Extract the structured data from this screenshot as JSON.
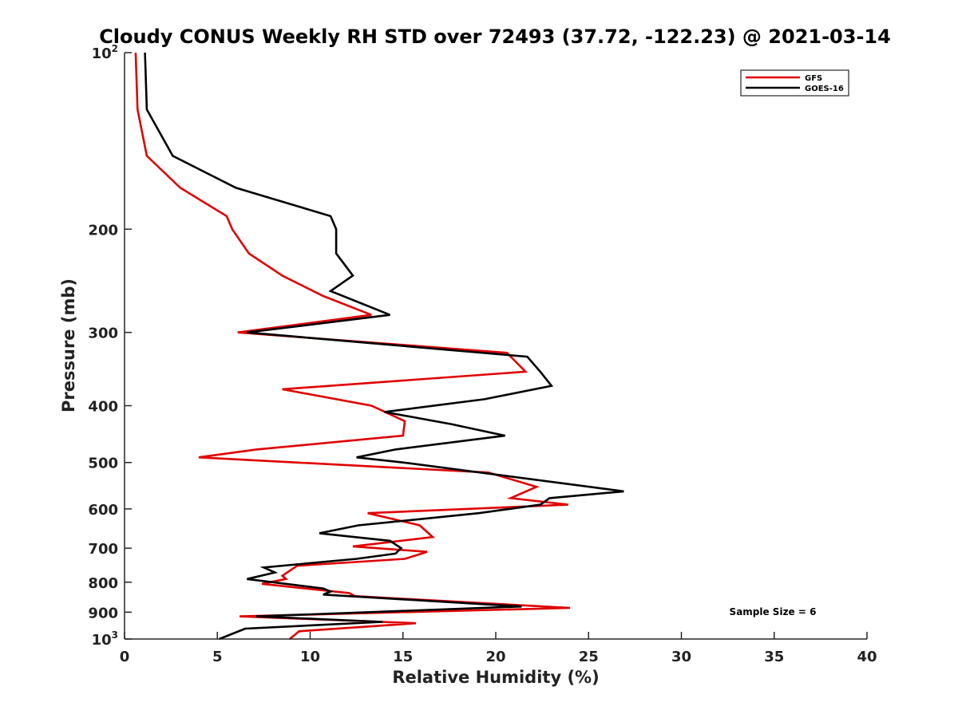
{
  "chart_data": {
    "type": "line",
    "title": "Cloudy CONUS Weekly RH STD over 72493 (37.72, -122.23) @ 2021-03-14",
    "xlabel": "Relative Humidity (%)",
    "ylabel": "Pressure (mb)",
    "xlim": [
      0,
      40
    ],
    "ylim": [
      100,
      1000
    ],
    "y_scale": "log",
    "y_reversed": true,
    "grid": false,
    "legend_position": "top-right",
    "x_ticks": [
      0,
      5,
      10,
      15,
      20,
      25,
      30,
      35,
      40
    ],
    "y_ticks": [
      {
        "value": 100,
        "base": "10",
        "exp": "2"
      },
      {
        "value": 200,
        "label": "200"
      },
      {
        "value": 300,
        "label": "300"
      },
      {
        "value": 400,
        "label": "400"
      },
      {
        "value": 500,
        "label": "500"
      },
      {
        "value": 600,
        "label": "600"
      },
      {
        "value": 700,
        "label": "700"
      },
      {
        "value": 800,
        "label": "800"
      },
      {
        "value": 900,
        "label": "900"
      },
      {
        "value": 1000,
        "base": "10",
        "exp": "3"
      }
    ],
    "annotation": "Sample Size = 6",
    "series": [
      {
        "name": "GFS",
        "color": "#e00000",
        "points": [
          [
            0.6,
            100
          ],
          [
            0.7,
            125
          ],
          [
            1.2,
            150
          ],
          [
            3.0,
            170
          ],
          [
            5.5,
            190
          ],
          [
            5.8,
            200
          ],
          [
            6.7,
            220
          ],
          [
            8.5,
            240
          ],
          [
            10.7,
            260
          ],
          [
            13.3,
            280
          ],
          [
            6.1,
            300
          ],
          [
            20.6,
            325
          ],
          [
            21.6,
            350
          ],
          [
            8.5,
            375
          ],
          [
            13.3,
            400
          ],
          [
            15.1,
            425
          ],
          [
            15.0,
            450
          ],
          [
            7.1,
            475
          ],
          [
            4.0,
            490
          ],
          [
            19.6,
            520
          ],
          [
            22.2,
            550
          ],
          [
            20.8,
            575
          ],
          [
            23.9,
            590
          ],
          [
            13.1,
            610
          ],
          [
            15.9,
            640
          ],
          [
            16.6,
            670
          ],
          [
            12.3,
            695
          ],
          [
            16.3,
            710
          ],
          [
            15.1,
            730
          ],
          [
            9.3,
            750
          ],
          [
            8.5,
            780
          ],
          [
            8.7,
            790
          ],
          [
            7.4,
            805
          ],
          [
            12.1,
            835
          ],
          [
            12.4,
            845
          ],
          [
            24.0,
            885
          ],
          [
            6.2,
            915
          ],
          [
            15.7,
            940
          ],
          [
            9.4,
            970
          ],
          [
            8.9,
            1000
          ]
        ]
      },
      {
        "name": "GOES-16",
        "color": "#000000",
        "points": [
          [
            1.1,
            100
          ],
          [
            1.2,
            125
          ],
          [
            2.6,
            150
          ],
          [
            6.0,
            170
          ],
          [
            11.1,
            190
          ],
          [
            11.4,
            200
          ],
          [
            11.4,
            220
          ],
          [
            12.3,
            240
          ],
          [
            11.1,
            255
          ],
          [
            14.3,
            280
          ],
          [
            6.6,
            300
          ],
          [
            21.7,
            330
          ],
          [
            22.4,
            350
          ],
          [
            23.0,
            370
          ],
          [
            19.4,
            390
          ],
          [
            14.0,
            410
          ],
          [
            17.6,
            430
          ],
          [
            20.5,
            450
          ],
          [
            14.6,
            475
          ],
          [
            12.5,
            490
          ],
          [
            15.0,
            500
          ],
          [
            26.9,
            560
          ],
          [
            22.9,
            575
          ],
          [
            22.4,
            590
          ],
          [
            19.1,
            610
          ],
          [
            12.6,
            640
          ],
          [
            10.5,
            660
          ],
          [
            14.3,
            680
          ],
          [
            14.9,
            700
          ],
          [
            14.6,
            715
          ],
          [
            12.5,
            730
          ],
          [
            7.5,
            755
          ],
          [
            8.1,
            770
          ],
          [
            6.6,
            790
          ],
          [
            10.7,
            820
          ],
          [
            11.1,
            830
          ],
          [
            10.7,
            840
          ],
          [
            21.4,
            880
          ],
          [
            7.1,
            915
          ],
          [
            13.9,
            935
          ],
          [
            6.5,
            960
          ],
          [
            5.1,
            1000
          ]
        ]
      }
    ]
  }
}
